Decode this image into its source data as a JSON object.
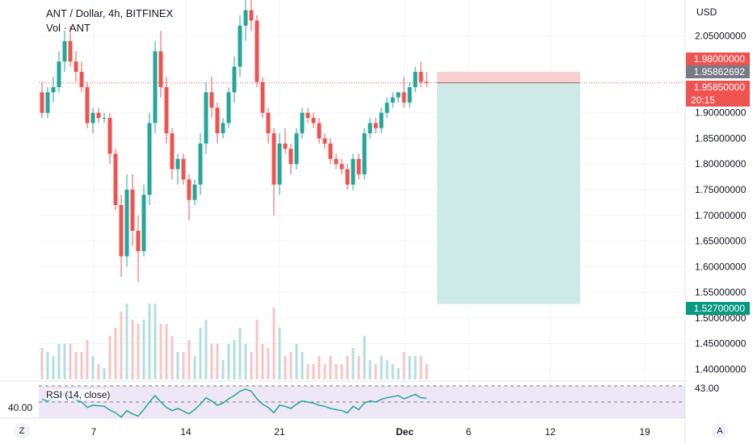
{
  "header": {
    "symbol": "ANT / Dollar, 4h, BITFINEX",
    "volume_label": "Vol · ANT",
    "rsi_label": "RSI (14, close)"
  },
  "axis": {
    "currency": "USD",
    "price_ticks": [
      "2.05000000",
      "1.90000000",
      "1.85000000",
      "1.80000000",
      "1.75000000",
      "1.70000000",
      "1.65000000",
      "1.60000000",
      "1.55000000",
      "1.50000000",
      "1.45000000",
      "1.40000000"
    ],
    "price_values": [
      2.05,
      1.9,
      1.85,
      1.8,
      1.75,
      1.7,
      1.65,
      1.6,
      1.55,
      1.5,
      1.45,
      1.4
    ],
    "date_ticks": [
      "7",
      "14",
      "21",
      "Dec",
      "6",
      "12",
      "19"
    ],
    "rsi_ticks": [
      "43.00",
      "40.00"
    ]
  },
  "badges": {
    "stop": "1.98000000",
    "entry_top": "1.95862692",
    "last_price": "1.95850000",
    "countdown": "20:15",
    "target": "1.52700000"
  },
  "toolbar": {
    "zoom": "Z",
    "auto": "A"
  },
  "colors": {
    "up": "#26a69a",
    "down": "#ef5350",
    "stop_zone": "#f8d0d0",
    "target_zone": "#cdeae7",
    "rsi_line": "#26a69a",
    "rsi_band": "#ede7f6"
  },
  "chart_data": {
    "type": "candlestick",
    "title": "ANT / Dollar, 4h, BITFINEX",
    "ylabel": "USD",
    "ylim": [
      1.38,
      2.12
    ],
    "position": {
      "entry": 1.9585,
      "stop": 1.98,
      "target": 1.527
    },
    "candles": [
      {
        "o": 1.94,
        "h": 1.96,
        "l": 1.89,
        "c": 1.9
      },
      {
        "o": 1.9,
        "h": 1.95,
        "l": 1.89,
        "c": 1.94
      },
      {
        "o": 1.94,
        "h": 1.97,
        "l": 1.92,
        "c": 1.95
      },
      {
        "o": 1.95,
        "h": 2.02,
        "l": 1.94,
        "c": 2.0
      },
      {
        "o": 2.0,
        "h": 2.06,
        "l": 1.98,
        "c": 2.04
      },
      {
        "o": 2.04,
        "h": 2.07,
        "l": 1.99,
        "c": 2.0
      },
      {
        "o": 2.0,
        "h": 2.02,
        "l": 1.96,
        "c": 1.98
      },
      {
        "o": 1.98,
        "h": 2.0,
        "l": 1.94,
        "c": 1.95
      },
      {
        "o": 1.95,
        "h": 1.96,
        "l": 1.87,
        "c": 1.88
      },
      {
        "o": 1.88,
        "h": 1.91,
        "l": 1.86,
        "c": 1.9
      },
      {
        "o": 1.9,
        "h": 1.91,
        "l": 1.88,
        "c": 1.89
      },
      {
        "o": 1.89,
        "h": 1.9,
        "l": 1.88,
        "c": 1.89
      },
      {
        "o": 1.89,
        "h": 1.9,
        "l": 1.8,
        "c": 1.82
      },
      {
        "o": 1.82,
        "h": 1.83,
        "l": 1.71,
        "c": 1.72
      },
      {
        "o": 1.72,
        "h": 1.74,
        "l": 1.58,
        "c": 1.62
      },
      {
        "o": 1.62,
        "h": 1.78,
        "l": 1.6,
        "c": 1.75
      },
      {
        "o": 1.75,
        "h": 1.78,
        "l": 1.64,
        "c": 1.67
      },
      {
        "o": 1.67,
        "h": 1.7,
        "l": 1.57,
        "c": 1.63
      },
      {
        "o": 1.63,
        "h": 1.76,
        "l": 1.62,
        "c": 1.74
      },
      {
        "o": 1.74,
        "h": 1.9,
        "l": 1.72,
        "c": 1.88
      },
      {
        "o": 1.88,
        "h": 2.04,
        "l": 1.86,
        "c": 2.02
      },
      {
        "o": 2.02,
        "h": 2.06,
        "l": 1.93,
        "c": 1.95
      },
      {
        "o": 1.95,
        "h": 1.97,
        "l": 1.84,
        "c": 1.86
      },
      {
        "o": 1.86,
        "h": 1.87,
        "l": 1.77,
        "c": 1.79
      },
      {
        "o": 1.79,
        "h": 1.82,
        "l": 1.76,
        "c": 1.81
      },
      {
        "o": 1.81,
        "h": 1.82,
        "l": 1.76,
        "c": 1.77
      },
      {
        "o": 1.77,
        "h": 1.78,
        "l": 1.69,
        "c": 1.73
      },
      {
        "o": 1.73,
        "h": 1.77,
        "l": 1.72,
        "c": 1.76
      },
      {
        "o": 1.76,
        "h": 1.86,
        "l": 1.74,
        "c": 1.84
      },
      {
        "o": 1.84,
        "h": 1.96,
        "l": 1.82,
        "c": 1.94
      },
      {
        "o": 1.94,
        "h": 1.97,
        "l": 1.89,
        "c": 1.91
      },
      {
        "o": 1.91,
        "h": 1.92,
        "l": 1.84,
        "c": 1.86
      },
      {
        "o": 1.86,
        "h": 1.89,
        "l": 1.85,
        "c": 1.88
      },
      {
        "o": 1.88,
        "h": 1.95,
        "l": 1.87,
        "c": 1.94
      },
      {
        "o": 1.94,
        "h": 2.01,
        "l": 1.92,
        "c": 1.99
      },
      {
        "o": 1.99,
        "h": 2.09,
        "l": 1.97,
        "c": 2.07
      },
      {
        "o": 2.07,
        "h": 2.12,
        "l": 2.04,
        "c": 2.1
      },
      {
        "o": 2.1,
        "h": 2.12,
        "l": 2.06,
        "c": 2.08
      },
      {
        "o": 2.08,
        "h": 2.09,
        "l": 1.95,
        "c": 1.96
      },
      {
        "o": 1.96,
        "h": 1.97,
        "l": 1.89,
        "c": 1.9
      },
      {
        "o": 1.9,
        "h": 1.91,
        "l": 1.84,
        "c": 1.86
      },
      {
        "o": 1.86,
        "h": 1.87,
        "l": 1.7,
        "c": 1.76
      },
      {
        "o": 1.76,
        "h": 1.86,
        "l": 1.74,
        "c": 1.84
      },
      {
        "o": 1.84,
        "h": 1.87,
        "l": 1.82,
        "c": 1.83
      },
      {
        "o": 1.83,
        "h": 1.84,
        "l": 1.78,
        "c": 1.8
      },
      {
        "o": 1.8,
        "h": 1.87,
        "l": 1.79,
        "c": 1.86
      },
      {
        "o": 1.86,
        "h": 1.91,
        "l": 1.85,
        "c": 1.9
      },
      {
        "o": 1.9,
        "h": 1.91,
        "l": 1.88,
        "c": 1.89
      },
      {
        "o": 1.89,
        "h": 1.9,
        "l": 1.87,
        "c": 1.88
      },
      {
        "o": 1.88,
        "h": 1.89,
        "l": 1.84,
        "c": 1.85
      },
      {
        "o": 1.85,
        "h": 1.86,
        "l": 1.83,
        "c": 1.84
      },
      {
        "o": 1.84,
        "h": 1.85,
        "l": 1.8,
        "c": 1.81
      },
      {
        "o": 1.81,
        "h": 1.82,
        "l": 1.79,
        "c": 1.8
      },
      {
        "o": 1.8,
        "h": 1.81,
        "l": 1.78,
        "c": 1.79
      },
      {
        "o": 1.79,
        "h": 1.8,
        "l": 1.75,
        "c": 1.76
      },
      {
        "o": 1.76,
        "h": 1.82,
        "l": 1.75,
        "c": 1.81
      },
      {
        "o": 1.81,
        "h": 1.82,
        "l": 1.77,
        "c": 1.78
      },
      {
        "o": 1.78,
        "h": 1.87,
        "l": 1.77,
        "c": 1.86
      },
      {
        "o": 1.86,
        "h": 1.89,
        "l": 1.85,
        "c": 1.88
      },
      {
        "o": 1.88,
        "h": 1.89,
        "l": 1.86,
        "c": 1.87
      },
      {
        "o": 1.87,
        "h": 1.91,
        "l": 1.86,
        "c": 1.9
      },
      {
        "o": 1.9,
        "h": 1.93,
        "l": 1.89,
        "c": 1.92
      },
      {
        "o": 1.92,
        "h": 1.94,
        "l": 1.91,
        "c": 1.93
      },
      {
        "o": 1.93,
        "h": 1.94,
        "l": 1.92,
        "c": 1.94
      },
      {
        "o": 1.94,
        "h": 1.97,
        "l": 1.91,
        "c": 1.92
      },
      {
        "o": 1.92,
        "h": 1.96,
        "l": 1.91,
        "c": 1.95
      },
      {
        "o": 1.95,
        "h": 1.99,
        "l": 1.94,
        "c": 1.98
      },
      {
        "o": 1.98,
        "h": 2.0,
        "l": 1.95,
        "c": 1.96
      },
      {
        "o": 1.96,
        "h": 1.98,
        "l": 1.95,
        "c": 1.958
      }
    ],
    "rsi": [
      55,
      52,
      58,
      60,
      66,
      58,
      54,
      50,
      40,
      44,
      43,
      42,
      35,
      30,
      22,
      34,
      28,
      24,
      36,
      50,
      62,
      50,
      40,
      34,
      38,
      33,
      28,
      36,
      46,
      58,
      52,
      44,
      48,
      56,
      62,
      70,
      74,
      70,
      56,
      46,
      40,
      30,
      44,
      42,
      38,
      46,
      52,
      50,
      48,
      44,
      42,
      38,
      36,
      34,
      30,
      42,
      36,
      48,
      52,
      50,
      55,
      58,
      60,
      62,
      56,
      60,
      64,
      58,
      57
    ]
  }
}
